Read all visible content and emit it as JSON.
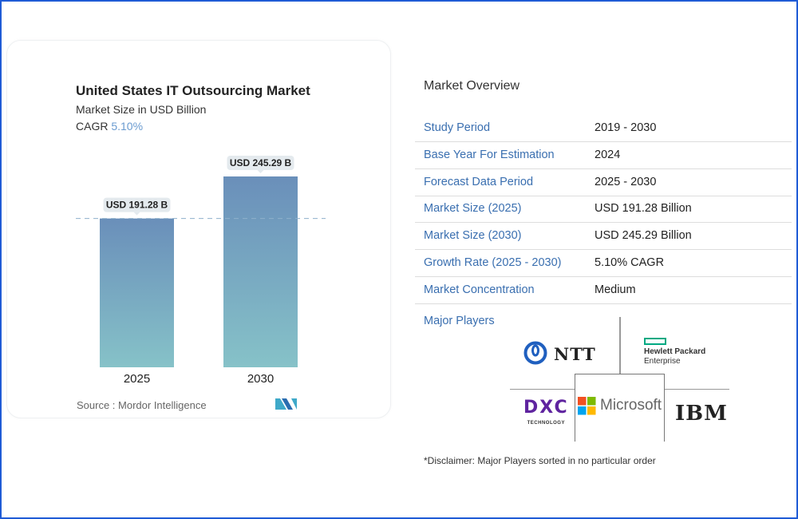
{
  "chart_data": {
    "type": "bar",
    "title": "United States IT Outsourcing Market",
    "subtitle": "Market Size in USD Billion",
    "cagr_label": "CAGR",
    "cagr_value": "5.10%",
    "categories": [
      "2025",
      "2030"
    ],
    "values": [
      191.28,
      245.29
    ],
    "data_labels": [
      "USD 191.28 B",
      "USD 245.29 B"
    ],
    "ylim": [
      0,
      250
    ],
    "reference_line": 191.28,
    "source": "Source :  Mordor Intelligence",
    "colors": {
      "bar_top": "#6a8fba",
      "bar_bottom": "#86c2c8",
      "cagr": "#6a9bd0"
    }
  },
  "overview": {
    "title": "Market Overview",
    "rows": [
      {
        "label": "Study Period",
        "value": "2019 - 2030"
      },
      {
        "label": "Base Year For Estimation",
        "value": "2024"
      },
      {
        "label": "Forecast Data Period",
        "value": "2025 - 2030"
      },
      {
        "label": "Market Size (2025)",
        "value": "USD 191.28 Billion"
      },
      {
        "label": "Market Size (2030)",
        "value": "USD 245.29 Billion"
      },
      {
        "label": "Growth Rate (2025 - 2030)",
        "value": "5.10% CAGR"
      },
      {
        "label": "Market Concentration",
        "value": "Medium"
      }
    ],
    "major_players_label": "Major Players",
    "players": {
      "ntt": "NTT",
      "hpe_1": "Hewlett Packard",
      "hpe_2": "Enterprise",
      "dxc": "DXC",
      "dxc_sub": "TECHNOLOGY",
      "microsoft": "Microsoft",
      "ibm": "IBM"
    },
    "disclaimer": "*Disclaimer: Major Players sorted in no particular order"
  }
}
